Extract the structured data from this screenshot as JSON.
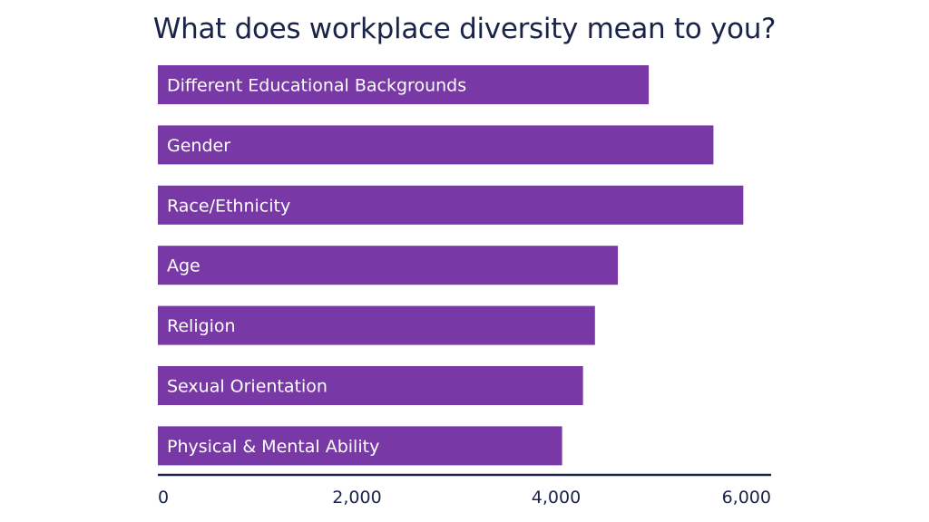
{
  "chart_data": {
    "type": "bar",
    "orientation": "horizontal",
    "title": "What does workplace diversity mean to you?",
    "categories": [
      "Different Educational Backgrounds",
      "Gender",
      "Race/Ethnicity",
      "Age",
      "Religion",
      "Sexual Orientation",
      "Physical & Mental Ability"
    ],
    "values": [
      4930,
      5580,
      5880,
      4620,
      4390,
      4270,
      4060
    ],
    "xlim": [
      0,
      6200
    ],
    "xticks": [
      0,
      2000,
      4000,
      6000
    ],
    "xtick_labels": [
      "0",
      "2,000",
      "4,000",
      "6,000"
    ],
    "xlabel": "",
    "ylabel": "",
    "grid": false,
    "legend": "none",
    "colors": {
      "bar": "#7839a6",
      "bar_label": "#ffffff",
      "axis": "#1a2348",
      "title": "#1a2348",
      "tick_label": "#1a2348"
    }
  }
}
